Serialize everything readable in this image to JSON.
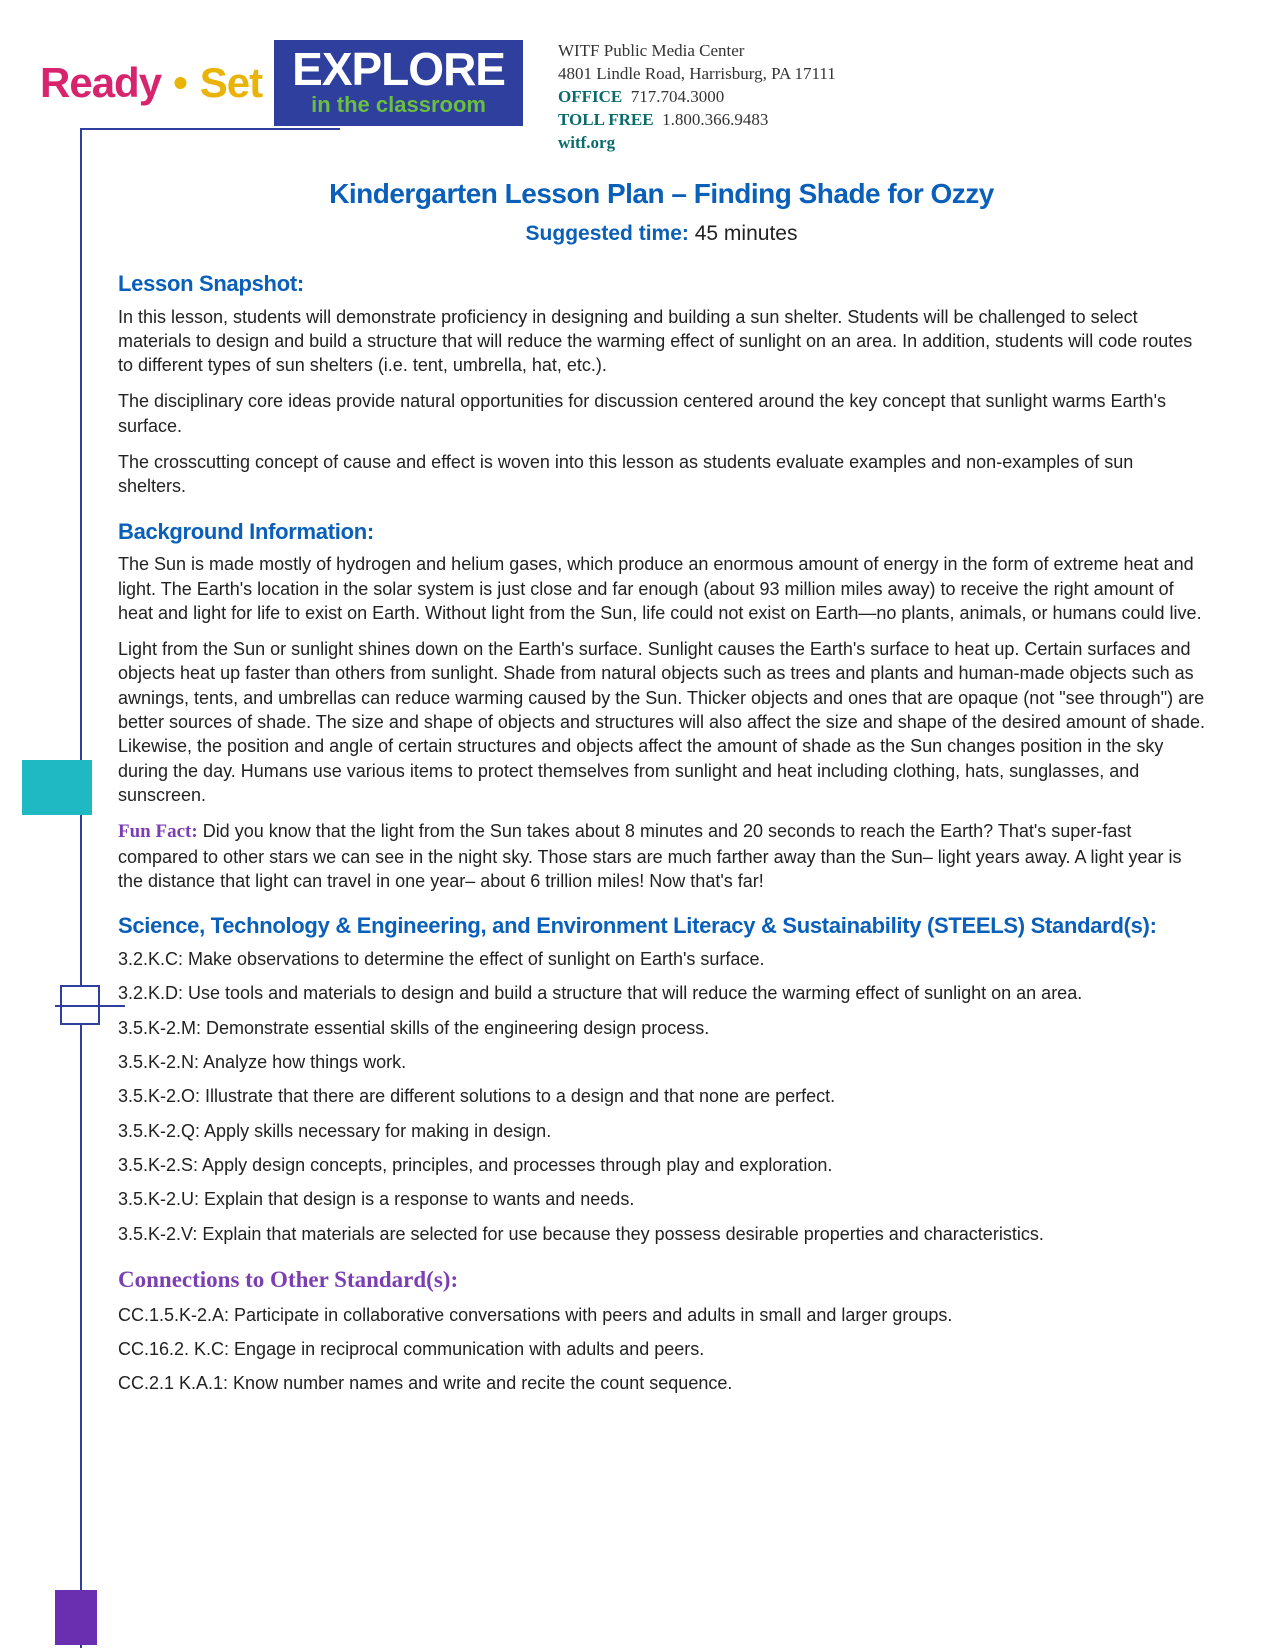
{
  "header": {
    "ready": "Ready",
    "dot": "•",
    "set": "Set",
    "explore": "EXPLORE",
    "classroom": "in the classroom"
  },
  "contact": {
    "org": "WITF Public Media Center",
    "address": "4801 Lindle Road, Harrisburg, PA 17111",
    "office_label": "OFFICE",
    "office_phone": "717.704.3000",
    "tollfree_label": "TOLL FREE",
    "tollfree_phone": "1.800.366.9483",
    "website": "witf.org"
  },
  "title": "Kindergarten Lesson Plan – Finding Shade for Ozzy",
  "suggested_label": "Suggested time:",
  "suggested_value": "45 minutes",
  "snapshot_heading": "Lesson Snapshot:",
  "snapshot_p1": "In this lesson, students will demonstrate proficiency in designing and building a sun shelter. Students will be challenged to select materials to design and build a structure that will reduce the warming effect of sunlight on an area. In addition, students will code routes to different types of sun shelters (i.e. tent, umbrella, hat, etc.).",
  "snapshot_p2": "The disciplinary core ideas provide natural opportunities for discussion centered around the key concept that sunlight warms Earth's surface.",
  "snapshot_p3": "The crosscutting concept of cause and effect is woven into this lesson as students evaluate examples and non-examples of sun shelters.",
  "background_heading": "Background Information:",
  "background_p1": "The Sun is made mostly of hydrogen and helium gases, which produce an enormous amount of energy in the form of extreme heat and light. The Earth's location in the solar system is just close and far enough (about 93 million miles away) to receive the right amount of heat and light for life to exist on Earth. Without light from the Sun, life could not exist on Earth—no plants, animals, or humans could live.",
  "background_p2": "Light from the Sun or sunlight shines down on the Earth's surface. Sunlight causes the Earth's surface to heat up. Certain surfaces and objects heat up faster than others from sunlight. Shade from natural objects such as trees and plants and human-made objects such as awnings, tents, and umbrellas can reduce warming caused by the Sun. Thicker objects and ones that are opaque (not \"see through\") are better sources of shade. The size and shape of objects and structures will also affect the size and shape of the desired amount of shade. Likewise, the position and angle of certain structures and objects affect the amount of shade as the Sun changes position in the sky during the day. Humans use various items to protect themselves from sunlight and heat including clothing, hats, sunglasses, and sunscreen.",
  "funfact_label": "Fun Fact:",
  "funfact_text": " Did you know that the light from the Sun takes about 8 minutes and 20 seconds to reach the Earth? That's super-fast compared to other stars we can see in the night sky. Those stars are much farther away than the Sun– light years away. A light year is the distance that light can travel in one year– about 6 trillion miles! Now that's far!",
  "steels_heading": "Science, Technology & Engineering, and Environment Literacy & Sustainability (STEELS) Standard(s):",
  "steels": [
    "3.2.K.C: Make observations to determine the effect of sunlight on Earth's surface.",
    "3.2.K.D: Use tools and materials to design and build a structure that will reduce the warming effect of sunlight on an area.",
    "3.5.K-2.M: Demonstrate essential skills of the engineering design process.",
    "3.5.K-2.N: Analyze how things work.",
    "3.5.K-2.O: Illustrate that there are different solutions to a design and that none are perfect.",
    "3.5.K-2.Q: Apply skills necessary for making in design.",
    "3.5.K-2.S: Apply design concepts, principles, and processes through play and exploration.",
    "3.5.K-2.U: Explain that design is a response to wants and needs.",
    "3.5.K-2.V: Explain that materials are selected for use because they possess desirable properties and characteristics."
  ],
  "connections_heading": "Connections to Other Standard(s):",
  "connections": [
    "CC.1.5.K-2.A: Participate in collaborative conversations with peers and adults in small and larger groups.",
    "CC.16.2. K.C: Engage in reciprocal communication with adults and peers.",
    "CC.2.1 K.A.1: Know number names and write and recite the count sequence."
  ],
  "colors": {
    "blue": "#0a5fb8",
    "purple": "#7b3fb3",
    "teal": "#1fb9c4",
    "dark_purple": "#6a2fb0",
    "logo_blue": "#2f3f9e",
    "pink": "#d6246e",
    "gold": "#eab308",
    "green": "#6bbf3f"
  }
}
